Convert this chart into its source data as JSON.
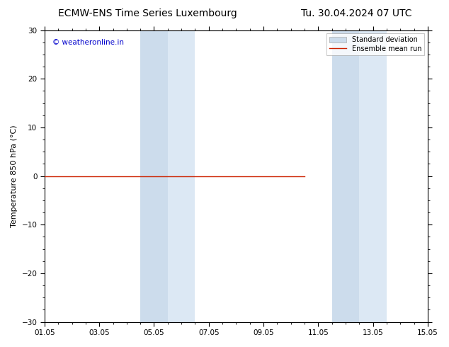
{
  "title_left": "ECMW-ENS Time Series Luxembourg",
  "title_right": "Tu. 30.04.2024 07 UTC",
  "ylabel": "Temperature 850 hPa (°C)",
  "ylim": [
    -30,
    30
  ],
  "yticks": [
    -30,
    -20,
    -10,
    0,
    10,
    20,
    30
  ],
  "xtick_labels": [
    "01.05",
    "03.05",
    "05.05",
    "07.05",
    "09.05",
    "11.05",
    "13.05",
    "15.05"
  ],
  "xtick_positions": [
    0,
    2,
    4,
    6,
    8,
    10,
    12,
    14
  ],
  "xlim": [
    0,
    14
  ],
  "shaded_regions": [
    {
      "x_start": 3.5,
      "x_end": 4.5,
      "color": "#ccdcec"
    },
    {
      "x_start": 4.5,
      "x_end": 5.5,
      "color": "#dce8f4"
    },
    {
      "x_start": 10.5,
      "x_end": 11.5,
      "color": "#ccdcec"
    },
    {
      "x_start": 11.5,
      "x_end": 12.5,
      "color": "#dce8f4"
    }
  ],
  "ensemble_mean_y": 0.0,
  "ensemble_mean_x_start": 0.0,
  "ensemble_mean_x_end": 9.5,
  "ensemble_color": "#cc2200",
  "stddev_color": "#ccdcec",
  "stddev_edge_color": "none",
  "background_color": "#ffffff",
  "watermark_text": "© weatheronline.in",
  "watermark_color": "#0000cc",
  "legend_stddev": "Standard deviation",
  "legend_mean": "Ensemble mean run",
  "title_fontsize": 10,
  "axis_fontsize": 8,
  "tick_fontsize": 7.5,
  "watermark_fontsize": 7.5
}
